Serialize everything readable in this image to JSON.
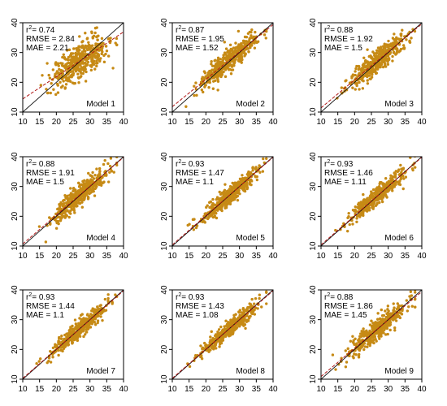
{
  "colors": {
    "points": "#c68a15",
    "identity_line": "#111111",
    "fit_line": "#b01818",
    "axis": "#000000",
    "background": "#ffffff"
  },
  "chart_data": [
    {
      "type": "scatter",
      "title": "Model 1",
      "xlim": [
        10,
        40
      ],
      "ylim": [
        10,
        40
      ],
      "x_ticks": [
        10,
        15,
        20,
        25,
        30,
        35,
        40
      ],
      "y_ticks": [
        10,
        20,
        30,
        40
      ],
      "stats": {
        "r2_label": "r",
        "r2_value": "= 0.74",
        "rmse": "RMSE = 2.84",
        "mae": "MAE = 2.21"
      },
      "fit": {
        "intercept": 6.9,
        "slope": 0.75
      },
      "points": {
        "n": 420,
        "x_range": [
          13,
          38
        ],
        "spread": 2.8
      }
    },
    {
      "type": "scatter",
      "title": "Model 2",
      "xlim": [
        10,
        40
      ],
      "ylim": [
        10,
        40
      ],
      "x_ticks": [
        10,
        15,
        20,
        25,
        30,
        35,
        40
      ],
      "y_ticks": [
        10,
        20,
        30,
        40
      ],
      "stats": {
        "r2_label": "r",
        "r2_value": "= 0.87",
        "rmse": "RMSE = 1.95",
        "mae": "MAE = 1.52"
      },
      "fit": {
        "intercept": 2.6,
        "slope": 0.92
      },
      "points": {
        "n": 420,
        "x_range": [
          13,
          38
        ],
        "spread": 1.95
      }
    },
    {
      "type": "scatter",
      "title": "Model 3",
      "xlim": [
        10,
        40
      ],
      "ylim": [
        10,
        40
      ],
      "x_ticks": [
        10,
        15,
        20,
        25,
        30,
        35,
        40
      ],
      "y_ticks": [
        10,
        20,
        30,
        40
      ],
      "stats": {
        "r2_label": "r",
        "r2_value": "= 0.88",
        "rmse": "RMSE = 1.92",
        "mae": "MAE = 1.5"
      },
      "fit": {
        "intercept": 2.0,
        "slope": 0.94
      },
      "points": {
        "n": 420,
        "x_range": [
          13,
          38
        ],
        "spread": 1.9
      }
    },
    {
      "type": "scatter",
      "title": "Model 4",
      "xlim": [
        10,
        40
      ],
      "ylim": [
        10,
        40
      ],
      "x_ticks": [
        10,
        15,
        20,
        25,
        30,
        35,
        40
      ],
      "y_ticks": [
        10,
        20,
        30,
        40
      ],
      "stats": {
        "r2_label": "r",
        "r2_value": "= 0.88",
        "rmse": "RMSE = 1.91",
        "mae": "MAE = 1.5"
      },
      "fit": {
        "intercept": 1.0,
        "slope": 0.97
      },
      "points": {
        "n": 420,
        "x_range": [
          13,
          38
        ],
        "spread": 1.9
      }
    },
    {
      "type": "scatter",
      "title": "Model 5",
      "xlim": [
        10,
        40
      ],
      "ylim": [
        10,
        40
      ],
      "x_ticks": [
        10,
        15,
        20,
        25,
        30,
        35,
        40
      ],
      "y_ticks": [
        10,
        20,
        30,
        40
      ],
      "stats": {
        "r2_label": "r",
        "r2_value": "= 0.93",
        "rmse": "RMSE = 1.47",
        "mae": "MAE = 1.1"
      },
      "fit": {
        "intercept": 0.6,
        "slope": 0.98
      },
      "points": {
        "n": 420,
        "x_range": [
          12,
          38
        ],
        "spread": 1.45
      }
    },
    {
      "type": "scatter",
      "title": "Model 6",
      "xlim": [
        10,
        40
      ],
      "ylim": [
        10,
        40
      ],
      "x_ticks": [
        10,
        15,
        20,
        25,
        30,
        35,
        40
      ],
      "y_ticks": [
        10,
        20,
        30,
        40
      ],
      "stats": {
        "r2_label": "r",
        "r2_value": "= 0.93",
        "rmse": "RMSE = 1.46",
        "mae": "MAE = 1.11"
      },
      "fit": {
        "intercept": 0.6,
        "slope": 0.98
      },
      "points": {
        "n": 420,
        "x_range": [
          12,
          38
        ],
        "spread": 1.45
      }
    },
    {
      "type": "scatter",
      "title": "Model 7",
      "xlim": [
        10,
        40
      ],
      "ylim": [
        10,
        40
      ],
      "x_ticks": [
        10,
        15,
        20,
        25,
        30,
        35,
        40
      ],
      "y_ticks": [
        10,
        20,
        30,
        40
      ],
      "stats": {
        "r2_label": "r",
        "r2_value": "= 0.93",
        "rmse": "RMSE = 1.44",
        "mae": "MAE = 1.1"
      },
      "fit": {
        "intercept": 0.5,
        "slope": 0.98
      },
      "points": {
        "n": 420,
        "x_range": [
          12,
          38
        ],
        "spread": 1.4
      }
    },
    {
      "type": "scatter",
      "title": "Model 8",
      "xlim": [
        10,
        40
      ],
      "ylim": [
        10,
        40
      ],
      "x_ticks": [
        10,
        15,
        20,
        25,
        30,
        35,
        40
      ],
      "y_ticks": [
        10,
        20,
        30,
        40
      ],
      "stats": {
        "r2_label": "r",
        "r2_value": "= 0.93",
        "rmse": "RMSE = 1.43",
        "mae": "MAE = 1.08"
      },
      "fit": {
        "intercept": 0.5,
        "slope": 0.98
      },
      "points": {
        "n": 420,
        "x_range": [
          12,
          38
        ],
        "spread": 1.4
      }
    },
    {
      "type": "scatter",
      "title": "Model 9",
      "xlim": [
        10,
        40
      ],
      "ylim": [
        10,
        40
      ],
      "x_ticks": [
        10,
        15,
        20,
        25,
        30,
        35,
        40
      ],
      "y_ticks": [
        10,
        20,
        30,
        40
      ],
      "stats": {
        "r2_label": "r",
        "r2_value": "= 0.88",
        "rmse": "RMSE = 1.86",
        "mae": "MAE = 1.45"
      },
      "fit": {
        "intercept": 1.4,
        "slope": 0.95
      },
      "points": {
        "n": 420,
        "x_range": [
          13,
          38
        ],
        "spread": 1.85
      }
    }
  ]
}
